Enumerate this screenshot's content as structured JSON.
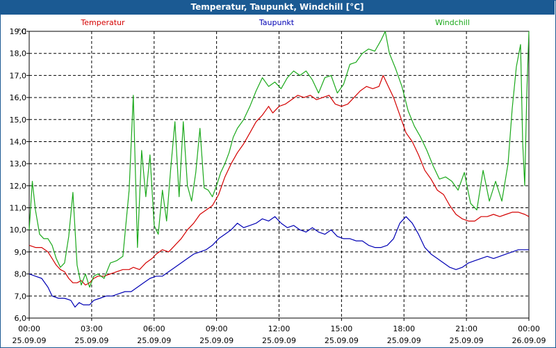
{
  "title": "Temperatur, Taupunkt, Windchill [°C]",
  "colors": {
    "titlebar": "#1b5a93",
    "temperatur": "#d40000",
    "taupunkt": "#0000b4",
    "windchill": "#1aa81a",
    "grid": "#000000"
  },
  "chart_data": {
    "type": "line",
    "title": "Temperatur, Taupunkt, Windchill [°C]",
    "ylabel": "°C",
    "xlabel": "",
    "ylim": [
      6.0,
      19.0
    ],
    "xlim": [
      0,
      24
    ],
    "grid": true,
    "yticks": [
      {
        "value": 6.0,
        "label": "6,0"
      },
      {
        "value": 7.0,
        "label": "7,0"
      },
      {
        "value": 8.0,
        "label": "8,0"
      },
      {
        "value": 9.0,
        "label": "9,0"
      },
      {
        "value": 10.0,
        "label": "10,0"
      },
      {
        "value": 11.0,
        "label": "11,0"
      },
      {
        "value": 12.0,
        "label": "12,0"
      },
      {
        "value": 13.0,
        "label": "13,0"
      },
      {
        "value": 14.0,
        "label": "14,0"
      },
      {
        "value": 15.0,
        "label": "15,0"
      },
      {
        "value": 16.0,
        "label": "16,0"
      },
      {
        "value": 17.0,
        "label": "17,0"
      },
      {
        "value": 18.0,
        "label": "18,0"
      },
      {
        "value": 19.0,
        "label": "19,0"
      }
    ],
    "xticks": [
      {
        "value": 0,
        "time": "00:00",
        "date": "25.09.09"
      },
      {
        "value": 3,
        "time": "03:00",
        "date": "25.09.09"
      },
      {
        "value": 6,
        "time": "06:00",
        "date": "25.09.09"
      },
      {
        "value": 9,
        "time": "09:00",
        "date": "25.09.09"
      },
      {
        "value": 12,
        "time": "12:00",
        "date": "25.09.09"
      },
      {
        "value": 15,
        "time": "15:00",
        "date": "25.09.09"
      },
      {
        "value": 18,
        "time": "18:00",
        "date": "25.09.09"
      },
      {
        "value": 21,
        "time": "21:00",
        "date": "25.09.09"
      },
      {
        "value": 24,
        "time": "00:00",
        "date": "26.09.09"
      }
    ],
    "series": [
      {
        "name": "Temperatur",
        "color": "#d40000",
        "points": [
          [
            0,
            9.3
          ],
          [
            0.3,
            9.2
          ],
          [
            0.6,
            9.2
          ],
          [
            0.9,
            9.0
          ],
          [
            1.1,
            8.7
          ],
          [
            1.3,
            8.4
          ],
          [
            1.5,
            8.2
          ],
          [
            1.7,
            8.1
          ],
          [
            1.9,
            7.8
          ],
          [
            2.1,
            7.6
          ],
          [
            2.3,
            7.6
          ],
          [
            2.5,
            7.7
          ],
          [
            2.7,
            7.5
          ],
          [
            2.9,
            7.6
          ],
          [
            3.1,
            7.8
          ],
          [
            3.3,
            7.9
          ],
          [
            3.6,
            7.9
          ],
          [
            3.9,
            8.0
          ],
          [
            4.2,
            8.1
          ],
          [
            4.5,
            8.2
          ],
          [
            4.8,
            8.2
          ],
          [
            5.0,
            8.3
          ],
          [
            5.3,
            8.2
          ],
          [
            5.6,
            8.5
          ],
          [
            5.9,
            8.7
          ],
          [
            6.1,
            8.9
          ],
          [
            6.4,
            9.1
          ],
          [
            6.7,
            9.0
          ],
          [
            7.0,
            9.3
          ],
          [
            7.3,
            9.6
          ],
          [
            7.6,
            10.0
          ],
          [
            7.9,
            10.3
          ],
          [
            8.2,
            10.7
          ],
          [
            8.5,
            10.9
          ],
          [
            8.8,
            11.1
          ],
          [
            9.1,
            11.6
          ],
          [
            9.4,
            12.4
          ],
          [
            9.7,
            13.0
          ],
          [
            10.0,
            13.5
          ],
          [
            10.3,
            13.9
          ],
          [
            10.6,
            14.4
          ],
          [
            10.9,
            14.9
          ],
          [
            11.2,
            15.2
          ],
          [
            11.5,
            15.6
          ],
          [
            11.7,
            15.3
          ],
          [
            12.0,
            15.6
          ],
          [
            12.3,
            15.7
          ],
          [
            12.6,
            15.9
          ],
          [
            12.9,
            16.1
          ],
          [
            13.2,
            16.0
          ],
          [
            13.5,
            16.1
          ],
          [
            13.8,
            15.9
          ],
          [
            14.1,
            16.0
          ],
          [
            14.4,
            16.1
          ],
          [
            14.7,
            15.7
          ],
          [
            15.0,
            15.6
          ],
          [
            15.3,
            15.7
          ],
          [
            15.6,
            16.0
          ],
          [
            15.9,
            16.3
          ],
          [
            16.2,
            16.5
          ],
          [
            16.5,
            16.4
          ],
          [
            16.8,
            16.5
          ],
          [
            17.0,
            17.0
          ],
          [
            17.2,
            16.6
          ],
          [
            17.5,
            16.0
          ],
          [
            17.8,
            15.2
          ],
          [
            18.1,
            14.4
          ],
          [
            18.4,
            14.0
          ],
          [
            18.7,
            13.4
          ],
          [
            19.0,
            12.7
          ],
          [
            19.3,
            12.3
          ],
          [
            19.6,
            11.8
          ],
          [
            19.9,
            11.6
          ],
          [
            20.2,
            11.1
          ],
          [
            20.5,
            10.7
          ],
          [
            20.8,
            10.5
          ],
          [
            21.1,
            10.4
          ],
          [
            21.4,
            10.4
          ],
          [
            21.7,
            10.6
          ],
          [
            22.0,
            10.6
          ],
          [
            22.3,
            10.7
          ],
          [
            22.6,
            10.6
          ],
          [
            22.9,
            10.7
          ],
          [
            23.2,
            10.8
          ],
          [
            23.5,
            10.8
          ],
          [
            23.8,
            10.7
          ],
          [
            24.0,
            10.6
          ]
        ]
      },
      {
        "name": "Taupunkt",
        "color": "#0000b4",
        "points": [
          [
            0,
            8.0
          ],
          [
            0.3,
            7.9
          ],
          [
            0.6,
            7.8
          ],
          [
            0.9,
            7.4
          ],
          [
            1.1,
            7.0
          ],
          [
            1.4,
            6.9
          ],
          [
            1.7,
            6.9
          ],
          [
            2.0,
            6.8
          ],
          [
            2.2,
            6.5
          ],
          [
            2.4,
            6.7
          ],
          [
            2.6,
            6.6
          ],
          [
            2.9,
            6.6
          ],
          [
            3.1,
            6.8
          ],
          [
            3.4,
            6.9
          ],
          [
            3.7,
            7.0
          ],
          [
            4.0,
            7.0
          ],
          [
            4.3,
            7.1
          ],
          [
            4.6,
            7.2
          ],
          [
            4.9,
            7.2
          ],
          [
            5.2,
            7.4
          ],
          [
            5.5,
            7.6
          ],
          [
            5.8,
            7.8
          ],
          [
            6.1,
            7.9
          ],
          [
            6.4,
            7.9
          ],
          [
            6.7,
            8.1
          ],
          [
            7.0,
            8.3
          ],
          [
            7.3,
            8.5
          ],
          [
            7.6,
            8.7
          ],
          [
            7.9,
            8.9
          ],
          [
            8.2,
            9.0
          ],
          [
            8.5,
            9.1
          ],
          [
            8.8,
            9.3
          ],
          [
            9.1,
            9.6
          ],
          [
            9.4,
            9.8
          ],
          [
            9.7,
            10.0
          ],
          [
            10.0,
            10.3
          ],
          [
            10.3,
            10.1
          ],
          [
            10.6,
            10.2
          ],
          [
            10.9,
            10.3
          ],
          [
            11.2,
            10.5
          ],
          [
            11.5,
            10.4
          ],
          [
            11.8,
            10.6
          ],
          [
            12.1,
            10.3
          ],
          [
            12.4,
            10.1
          ],
          [
            12.7,
            10.2
          ],
          [
            13.0,
            10.0
          ],
          [
            13.3,
            9.9
          ],
          [
            13.6,
            10.1
          ],
          [
            13.9,
            9.9
          ],
          [
            14.2,
            9.8
          ],
          [
            14.5,
            10.0
          ],
          [
            14.8,
            9.7
          ],
          [
            15.1,
            9.6
          ],
          [
            15.4,
            9.6
          ],
          [
            15.7,
            9.5
          ],
          [
            16.0,
            9.5
          ],
          [
            16.3,
            9.3
          ],
          [
            16.6,
            9.2
          ],
          [
            16.9,
            9.2
          ],
          [
            17.2,
            9.3
          ],
          [
            17.5,
            9.6
          ],
          [
            17.8,
            10.3
          ],
          [
            18.1,
            10.6
          ],
          [
            18.4,
            10.3
          ],
          [
            18.7,
            9.8
          ],
          [
            19.0,
            9.2
          ],
          [
            19.3,
            8.9
          ],
          [
            19.6,
            8.7
          ],
          [
            19.9,
            8.5
          ],
          [
            20.2,
            8.3
          ],
          [
            20.5,
            8.2
          ],
          [
            20.8,
            8.3
          ],
          [
            21.1,
            8.5
          ],
          [
            21.4,
            8.6
          ],
          [
            21.7,
            8.7
          ],
          [
            22.0,
            8.8
          ],
          [
            22.3,
            8.7
          ],
          [
            22.6,
            8.8
          ],
          [
            22.9,
            8.9
          ],
          [
            23.2,
            9.0
          ],
          [
            23.5,
            9.1
          ],
          [
            23.8,
            9.1
          ],
          [
            24.0,
            9.1
          ]
        ]
      },
      {
        "name": "Windchill",
        "color": "#1aa81a",
        "points": [
          [
            0,
            10.0
          ],
          [
            0.15,
            12.2
          ],
          [
            0.3,
            10.9
          ],
          [
            0.5,
            9.8
          ],
          [
            0.7,
            9.6
          ],
          [
            0.9,
            9.6
          ],
          [
            1.1,
            9.3
          ],
          [
            1.3,
            8.7
          ],
          [
            1.5,
            8.3
          ],
          [
            1.7,
            8.5
          ],
          [
            1.9,
            9.7
          ],
          [
            2.1,
            11.7
          ],
          [
            2.3,
            8.4
          ],
          [
            2.5,
            7.5
          ],
          [
            2.7,
            8.0
          ],
          [
            2.9,
            7.4
          ],
          [
            3.1,
            7.9
          ],
          [
            3.3,
            8.0
          ],
          [
            3.6,
            7.8
          ],
          [
            3.9,
            8.5
          ],
          [
            4.2,
            8.6
          ],
          [
            4.5,
            8.8
          ],
          [
            4.8,
            11.8
          ],
          [
            5.0,
            16.1
          ],
          [
            5.2,
            9.2
          ],
          [
            5.4,
            13.6
          ],
          [
            5.6,
            11.5
          ],
          [
            5.8,
            13.4
          ],
          [
            6.0,
            10.2
          ],
          [
            6.2,
            9.8
          ],
          [
            6.4,
            11.8
          ],
          [
            6.6,
            10.4
          ],
          [
            6.8,
            12.8
          ],
          [
            7.0,
            14.9
          ],
          [
            7.2,
            11.5
          ],
          [
            7.4,
            14.9
          ],
          [
            7.6,
            12.0
          ],
          [
            7.8,
            11.3
          ],
          [
            8.0,
            12.6
          ],
          [
            8.2,
            14.6
          ],
          [
            8.4,
            11.9
          ],
          [
            8.6,
            11.8
          ],
          [
            8.8,
            11.5
          ],
          [
            9.0,
            12.0
          ],
          [
            9.2,
            12.6
          ],
          [
            9.4,
            13.0
          ],
          [
            9.6,
            13.5
          ],
          [
            9.8,
            14.2
          ],
          [
            10.0,
            14.6
          ],
          [
            10.3,
            15.0
          ],
          [
            10.6,
            15.6
          ],
          [
            10.9,
            16.3
          ],
          [
            11.2,
            16.9
          ],
          [
            11.5,
            16.5
          ],
          [
            11.8,
            16.7
          ],
          [
            12.1,
            16.4
          ],
          [
            12.4,
            16.9
          ],
          [
            12.7,
            17.2
          ],
          [
            13.0,
            17.0
          ],
          [
            13.3,
            17.2
          ],
          [
            13.6,
            16.8
          ],
          [
            13.9,
            16.2
          ],
          [
            14.2,
            16.9
          ],
          [
            14.5,
            17.0
          ],
          [
            14.8,
            16.2
          ],
          [
            15.1,
            16.6
          ],
          [
            15.4,
            17.5
          ],
          [
            15.7,
            17.6
          ],
          [
            16.0,
            18.0
          ],
          [
            16.3,
            18.2
          ],
          [
            16.6,
            18.1
          ],
          [
            16.9,
            18.6
          ],
          [
            17.1,
            19.0
          ],
          [
            17.3,
            18.0
          ],
          [
            17.6,
            17.3
          ],
          [
            17.9,
            16.5
          ],
          [
            18.2,
            15.4
          ],
          [
            18.5,
            14.7
          ],
          [
            18.8,
            14.2
          ],
          [
            19.1,
            13.6
          ],
          [
            19.4,
            12.9
          ],
          [
            19.7,
            12.3
          ],
          [
            20.0,
            12.4
          ],
          [
            20.3,
            12.2
          ],
          [
            20.6,
            11.8
          ],
          [
            20.9,
            12.6
          ],
          [
            21.2,
            11.2
          ],
          [
            21.5,
            10.9
          ],
          [
            21.8,
            12.7
          ],
          [
            22.1,
            11.3
          ],
          [
            22.4,
            12.2
          ],
          [
            22.7,
            11.3
          ],
          [
            23.0,
            13.0
          ],
          [
            23.2,
            15.5
          ],
          [
            23.4,
            17.4
          ],
          [
            23.6,
            18.4
          ],
          [
            23.7,
            14.0
          ],
          [
            23.8,
            12.0
          ],
          [
            23.9,
            16.2
          ],
          [
            24.0,
            19.0
          ]
        ]
      }
    ]
  }
}
